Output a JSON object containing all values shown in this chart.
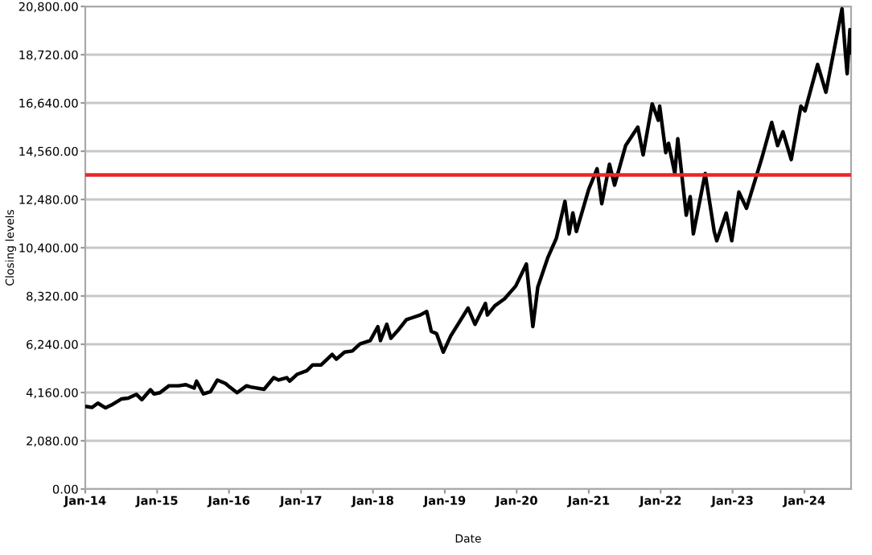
{
  "chart_data": {
    "type": "line",
    "xlabel": "Date",
    "ylabel": "Closing levels",
    "x": [
      "2014-01-02",
      "2014-02-05",
      "2014-03-06",
      "2014-04-14",
      "2014-05-20",
      "2014-07-03",
      "2014-08-07",
      "2014-09-18",
      "2014-10-15",
      "2014-11-28",
      "2014-12-16",
      "2015-01-15",
      "2015-03-02",
      "2015-04-20",
      "2015-05-27",
      "2015-07-08",
      "2015-07-20",
      "2015-08-24",
      "2015-09-29",
      "2015-11-03",
      "2015-12-14",
      "2016-01-04",
      "2016-02-11",
      "2016-03-30",
      "2016-04-20",
      "2016-06-27",
      "2016-08-15",
      "2016-09-09",
      "2016-10-20",
      "2016-11-04",
      "2016-12-13",
      "2017-01-30",
      "2017-03-01",
      "2017-04-13",
      "2017-06-08",
      "2017-06-29",
      "2017-08-10",
      "2017-09-18",
      "2017-10-27",
      "2017-12-18",
      "2018-01-26",
      "2018-02-08",
      "2018-03-12",
      "2018-04-02",
      "2018-05-14",
      "2018-06-20",
      "2018-08-29",
      "2018-10-01",
      "2018-10-24",
      "2018-11-20",
      "2018-12-24",
      "2019-01-31",
      "2019-04-29",
      "2019-06-03",
      "2019-07-26",
      "2019-08-05",
      "2019-09-12",
      "2019-10-31",
      "2019-12-27",
      "2020-02-19",
      "2020-03-23",
      "2020-04-17",
      "2020-06-08",
      "2020-07-20",
      "2020-09-02",
      "2020-09-23",
      "2020-10-12",
      "2020-10-30",
      "2020-12-31",
      "2021-02-12",
      "2021-03-08",
      "2021-04-16",
      "2021-05-12",
      "2021-07-07",
      "2021-09-07",
      "2021-10-04",
      "2021-11-19",
      "2021-12-20",
      "2021-12-27",
      "2022-01-27",
      "2022-02-10",
      "2022-03-14",
      "2022-03-29",
      "2022-05-11",
      "2022-05-31",
      "2022-06-16",
      "2022-08-15",
      "2022-09-30",
      "2022-10-13",
      "2022-11-30",
      "2022-12-28",
      "2023-02-02",
      "2023-03-13",
      "2023-05-31",
      "2023-07-19",
      "2023-08-18",
      "2023-09-14",
      "2023-10-26",
      "2023-12-14",
      "2024-01-04",
      "2024-03-08",
      "2024-04-19",
      "2024-05-28",
      "2024-07-10",
      "2024-07-25",
      "2024-08-05",
      "2024-08-19",
      "2024-08-23"
    ],
    "series": [
      {
        "color": "#000000",
        "values": [
          3560,
          3520,
          3700,
          3500,
          3650,
          3880,
          3920,
          4080,
          3850,
          4280,
          4100,
          4150,
          4450,
          4450,
          4500,
          4350,
          4650,
          4100,
          4200,
          4700,
          4550,
          4400,
          4150,
          4450,
          4400,
          4300,
          4800,
          4700,
          4800,
          4650,
          4950,
          5100,
          5350,
          5350,
          5800,
          5600,
          5900,
          5950,
          6250,
          6400,
          7000,
          6400,
          7100,
          6500,
          6900,
          7300,
          7500,
          7650,
          6800,
          6700,
          5900,
          6600,
          7800,
          7100,
          8000,
          7500,
          7900,
          8200,
          8750,
          9700,
          7000,
          8700,
          10000,
          10800,
          12400,
          11000,
          11900,
          11100,
          12900,
          13800,
          12300,
          14000,
          13100,
          14800,
          15600,
          14400,
          16600,
          15900,
          16500,
          14500,
          14900,
          13600,
          15100,
          11800,
          12600,
          11000,
          13600,
          11100,
          10700,
          11900,
          10700,
          12800,
          12100,
          14300,
          15800,
          14800,
          15400,
          14200,
          16500,
          16300,
          18300,
          17100,
          18800,
          20700,
          19000,
          17900,
          19800,
          18800
        ]
      }
    ],
    "xlim": [
      "2014-01-01",
      "2024-08-25"
    ],
    "xticks": [
      {
        "value": "2014-01-01",
        "label": "Jan-14"
      },
      {
        "value": "2015-01-01",
        "label": "Jan-15"
      },
      {
        "value": "2016-01-01",
        "label": "Jan-16"
      },
      {
        "value": "2017-01-01",
        "label": "Jan-17"
      },
      {
        "value": "2018-01-01",
        "label": "Jan-18"
      },
      {
        "value": "2019-01-01",
        "label": "Jan-19"
      },
      {
        "value": "2020-01-01",
        "label": "Jan-20"
      },
      {
        "value": "2021-01-01",
        "label": "Jan-21"
      },
      {
        "value": "2022-01-01",
        "label": "Jan-22"
      },
      {
        "value": "2023-01-01",
        "label": "Jan-23"
      },
      {
        "value": "2024-01-01",
        "label": "Jan-24"
      }
    ],
    "ylim": [
      0,
      20800
    ],
    "yticks": [
      {
        "value": 0,
        "label": "0.00"
      },
      {
        "value": 2080,
        "label": "2,080.00"
      },
      {
        "value": 4160,
        "label": "4,160.00"
      },
      {
        "value": 6240,
        "label": "6,240.00"
      },
      {
        "value": 8320,
        "label": "8,320.00"
      },
      {
        "value": 10400,
        "label": "10,400.00"
      },
      {
        "value": 12480,
        "label": "12,480.00"
      },
      {
        "value": 14560,
        "label": "14,560.00"
      },
      {
        "value": 16640,
        "label": "16,640.00"
      },
      {
        "value": 18720,
        "label": "18,720.00"
      },
      {
        "value": 20800,
        "label": "20,800.00"
      }
    ],
    "ref_lines": [
      {
        "axis": "y",
        "value": 13540,
        "color": "#e8262a"
      }
    ],
    "grid": "y",
    "marker": "none",
    "line_style": "solid"
  }
}
